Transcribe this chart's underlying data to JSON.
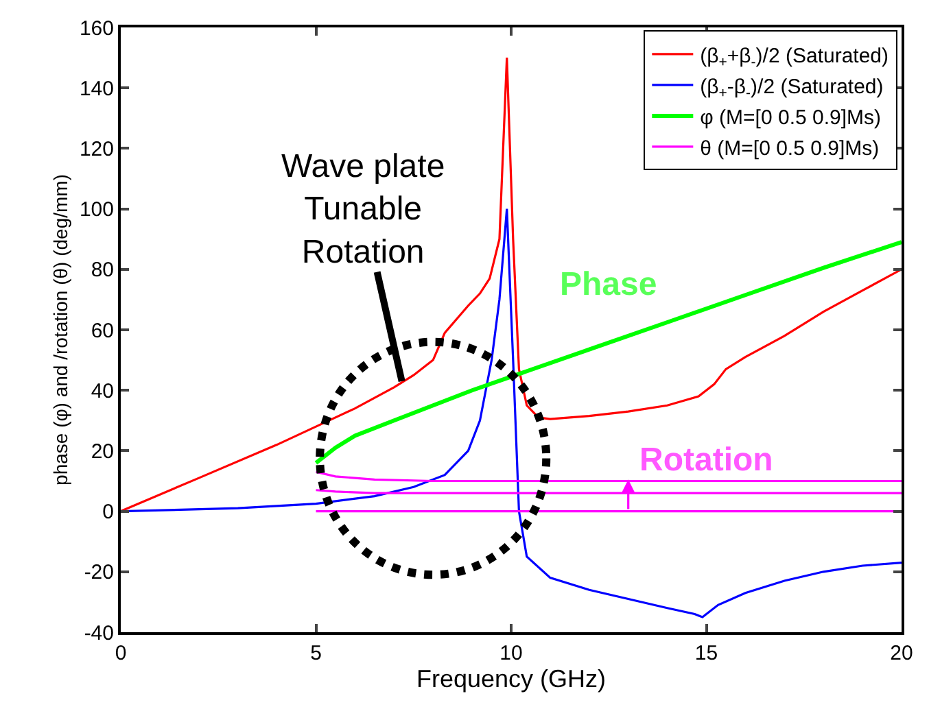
{
  "chart_data": {
    "type": "line",
    "xlabel": "Frequency (GHz)",
    "ylabel": "phase (φ) and /rotation (θ) (deg/mm)",
    "xlim": [
      0,
      20
    ],
    "ylim": [
      -40,
      160
    ],
    "xticks": [
      0,
      5,
      10,
      15,
      20
    ],
    "yticks": [
      -40,
      -20,
      0,
      20,
      40,
      60,
      80,
      100,
      120,
      140,
      160
    ],
    "grid": false,
    "legend": "top right",
    "line_style": "solid",
    "marker": "none",
    "series": [
      {
        "name": "(β$_{+}$+β$_{-}$)/2 (Saturated)",
        "color": "#ff0000",
        "x": [
          0,
          2,
          4,
          5,
          6,
          7,
          7.5,
          8,
          8.3,
          8.9,
          9.2,
          9.45,
          9.7,
          9.89,
          10.05,
          10.2,
          10.4,
          10.7,
          11,
          12,
          13,
          14,
          14.8,
          15.2,
          15.5,
          16,
          17,
          18,
          19,
          20
        ],
        "values": [
          0,
          11,
          22,
          28,
          34,
          41,
          45,
          50,
          59,
          68,
          72,
          77,
          90,
          150,
          90,
          47,
          35,
          31,
          30.5,
          31.5,
          33,
          35,
          38,
          42,
          47,
          51,
          58,
          66,
          73,
          80
        ]
      },
      {
        "name": "(β$_{+}$-β$_{-}$)/2 (Saturated)",
        "color": "#0000ff",
        "x": [
          0,
          3,
          5,
          6.5,
          7.5,
          8.3,
          8.9,
          9.2,
          9.5,
          9.7,
          9.89,
          10.05,
          10.2,
          10.4,
          11,
          12,
          13,
          14,
          14.7,
          14.9,
          15.3,
          16,
          17,
          18,
          19,
          20
        ],
        "values": [
          0,
          1,
          2.5,
          5,
          8,
          12,
          20,
          30,
          50,
          70,
          100,
          50,
          0,
          -15,
          -22,
          -26,
          -29,
          -32,
          -34,
          -35,
          -31,
          -27,
          -23,
          -20,
          -18,
          -17
        ]
      },
      {
        "name": "φ (M=[0 0.5 0.9]Ms)",
        "color": "#00ff00",
        "x": [
          5,
          5.5,
          6,
          7,
          8,
          9,
          10,
          12,
          14,
          16,
          18,
          20
        ],
        "values": [
          16,
          21,
          25,
          30,
          35,
          40,
          44.5,
          53.5,
          62.5,
          71.5,
          80.5,
          89
        ]
      },
      {
        "name": "θ (M=[0 0.5 0.9]Ms)",
        "color": "#ff00ff",
        "x": [
          5,
          5.5,
          6.5,
          8,
          10,
          12,
          15,
          17,
          20
        ],
        "values": [
          13,
          11.5,
          10.5,
          10,
          10,
          10,
          10,
          10,
          10
        ]
      },
      {
        "color": "#ff00ff",
        "x": [
          5,
          5.5,
          6.5,
          8,
          10,
          12,
          15,
          17,
          20
        ],
        "values": [
          7,
          6.5,
          6,
          6,
          6,
          6,
          6,
          6,
          6
        ]
      },
      {
        "color": "#ff00ff",
        "x": [
          5,
          8,
          10,
          12,
          15,
          17,
          20
        ],
        "values": [
          0,
          0,
          0,
          0,
          0,
          0,
          0
        ]
      }
    ],
    "annotations": [
      {
        "text": "Wave plate\nTunable\nRotation",
        "x": 7.2,
        "y": 43
      },
      "Phase",
      "Rotation"
    ]
  }
}
